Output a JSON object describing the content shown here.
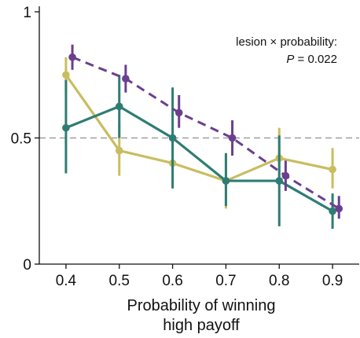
{
  "chart_data": {
    "type": "line",
    "xlabel": [
      "Probability of winning",
      "high payoff"
    ],
    "ylabel": "",
    "xlim": [
      0.35,
      0.95
    ],
    "ylim": [
      0,
      1
    ],
    "x_ticks": [
      "0.4",
      "0.5",
      "0.6",
      "0.7",
      "0.8",
      "0.9"
    ],
    "y_ticks": [
      "0",
      "0.5",
      "1"
    ],
    "reference_line": {
      "y": 0.5,
      "style": "dashed",
      "color": "#9e9e9e"
    },
    "annotation": {
      "line1": "lesion × probability:",
      "p_symbol": "P",
      "p_rest": " = 0.022"
    },
    "series": [
      {
        "color": "#c9bd5f",
        "line_style": "solid",
        "points": [
          {
            "x": 0.4,
            "y": 0.75,
            "err_low": 0.68,
            "err_high": 0.82
          },
          {
            "x": 0.5,
            "y": 0.45,
            "err_low": 0.35,
            "err_high": 0.56
          },
          {
            "x": 0.6,
            "y": 0.4,
            "err_low": 0.3,
            "err_high": 0.5
          },
          {
            "x": 0.7,
            "y": 0.33,
            "err_low": 0.22,
            "err_high": 0.43
          },
          {
            "x": 0.8,
            "y": 0.42,
            "err_low": 0.32,
            "err_high": 0.54
          },
          {
            "x": 0.9,
            "y": 0.375,
            "err_low": 0.3,
            "err_high": 0.46
          }
        ]
      },
      {
        "color": "#2e7d74",
        "line_style": "solid",
        "points": [
          {
            "x": 0.4,
            "y": 0.54,
            "err_low": 0.36,
            "err_high": 0.73
          },
          {
            "x": 0.5,
            "y": 0.625,
            "err_low": 0.5,
            "err_high": 0.75
          },
          {
            "x": 0.6,
            "y": 0.5,
            "err_low": 0.3,
            "err_high": 0.7
          },
          {
            "x": 0.7,
            "y": 0.33,
            "err_low": 0.23,
            "err_high": 0.44
          },
          {
            "x": 0.8,
            "y": 0.33,
            "err_low": 0.15,
            "err_high": 0.51
          },
          {
            "x": 0.9,
            "y": 0.21,
            "err_low": 0.14,
            "err_high": 0.28
          }
        ]
      },
      {
        "color": "#6b3f8e",
        "line_style": "dashed",
        "x_offset": 0.012,
        "points": [
          {
            "x": 0.4,
            "y": 0.82,
            "err_low": 0.77,
            "err_high": 0.87
          },
          {
            "x": 0.5,
            "y": 0.735,
            "err_low": 0.68,
            "err_high": 0.79
          },
          {
            "x": 0.6,
            "y": 0.6,
            "err_low": 0.54,
            "err_high": 0.67
          },
          {
            "x": 0.7,
            "y": 0.5,
            "err_low": 0.43,
            "err_high": 0.57
          },
          {
            "x": 0.8,
            "y": 0.35,
            "err_low": 0.29,
            "err_high": 0.41
          },
          {
            "x": 0.9,
            "y": 0.22,
            "err_low": 0.18,
            "err_high": 0.27
          }
        ]
      }
    ]
  }
}
